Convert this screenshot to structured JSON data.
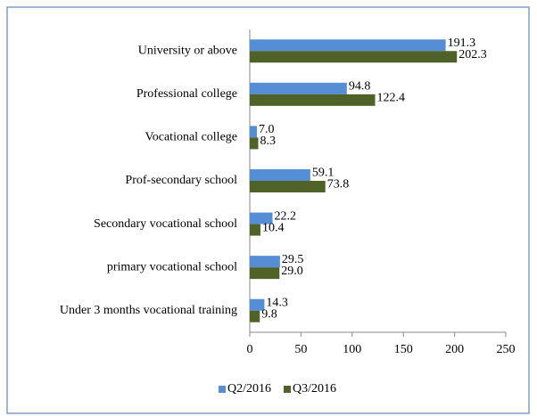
{
  "chart_data": {
    "type": "hbar",
    "categories": [
      "University or above",
      "Professional college",
      "Vocational college",
      "Prof-secondary school",
      "Secondary vocational school",
      "primary vocational school",
      "Under 3 months vocational training"
    ],
    "series": [
      {
        "name": "Q2/2016",
        "color": "#558ed5",
        "values": [
          191.3,
          94.8,
          7.0,
          59.1,
          22.2,
          29.5,
          14.3
        ],
        "value_labels": [
          "191.3",
          "94.8",
          "7.0",
          "59.1",
          "22.2",
          "29.5",
          "14.3"
        ]
      },
      {
        "name": "Q3/2016",
        "color": "#4f6228",
        "values": [
          202.3,
          122.4,
          8.3,
          73.8,
          10.4,
          29.0,
          9.8
        ],
        "value_labels": [
          "202.3",
          "122.4",
          "8.3",
          "73.8",
          "10.4",
          "29.0",
          "9.8"
        ]
      }
    ],
    "xlim": [
      0,
      250
    ],
    "xticks": [
      0,
      50,
      100,
      150,
      200,
      250
    ],
    "legend": "bottom"
  }
}
